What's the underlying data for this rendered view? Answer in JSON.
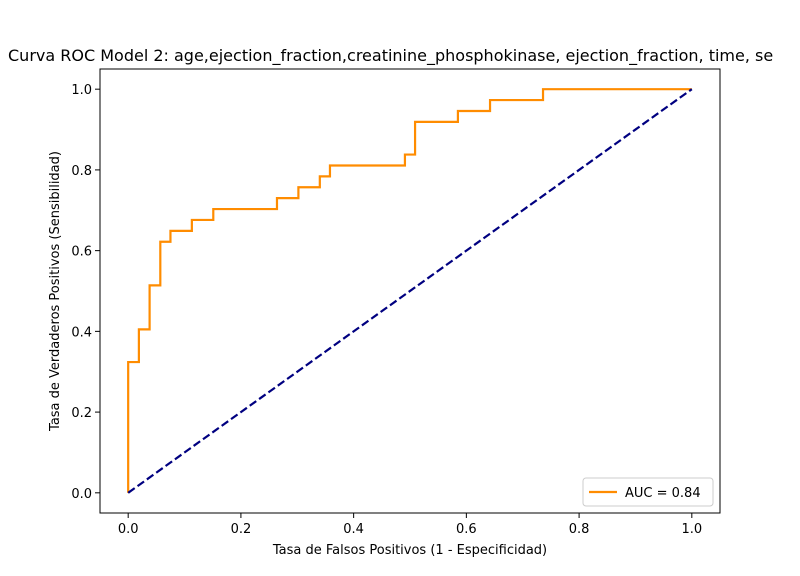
{
  "chart_data": {
    "type": "line",
    "title": "Curva ROC Model 2: age,ejection_fraction,creatinine_phosphokinase, ejection_fraction, time, se",
    "xlabel": "Tasa de Falsos Positivos (1 - Especificidad)",
    "ylabel": "Tasa de Verdaderos Positivos (Sensibilidad)",
    "xlim": [
      -0.05,
      1.05
    ],
    "ylim": [
      -0.05,
      1.05
    ],
    "xticks": [
      0.0,
      0.2,
      0.4,
      0.6,
      0.8,
      1.0
    ],
    "yticks": [
      0.0,
      0.2,
      0.4,
      0.6,
      0.8,
      1.0
    ],
    "xtick_labels": [
      "0.0",
      "0.2",
      "0.4",
      "0.6",
      "0.8",
      "1.0"
    ],
    "ytick_labels": [
      "0.0",
      "0.2",
      "0.4",
      "0.6",
      "0.8",
      "1.0"
    ],
    "grid": false,
    "legend_position": "lower-right",
    "series": [
      {
        "name": "AUC = 0.84",
        "color": "#ff8c00",
        "style": "solid",
        "x": [
          0.0,
          0.0,
          0.019,
          0.019,
          0.038,
          0.038,
          0.057,
          0.057,
          0.075,
          0.075,
          0.113,
          0.113,
          0.151,
          0.151,
          0.264,
          0.264,
          0.302,
          0.302,
          0.34,
          0.34,
          0.358,
          0.358,
          0.491,
          0.491,
          0.509,
          0.509,
          0.585,
          0.585,
          0.642,
          0.642,
          0.736,
          0.736,
          1.0
        ],
        "y": [
          0.0,
          0.324,
          0.324,
          0.405,
          0.405,
          0.514,
          0.514,
          0.622,
          0.622,
          0.649,
          0.649,
          0.676,
          0.676,
          0.703,
          0.703,
          0.73,
          0.73,
          0.757,
          0.757,
          0.784,
          0.784,
          0.811,
          0.811,
          0.838,
          0.838,
          0.919,
          0.919,
          0.946,
          0.946,
          0.973,
          0.973,
          1.0,
          1.0
        ]
      },
      {
        "color": "#000080",
        "style": "dashed",
        "x": [
          0.0,
          1.0
        ],
        "y": [
          0.0,
          1.0
        ]
      }
    ]
  }
}
